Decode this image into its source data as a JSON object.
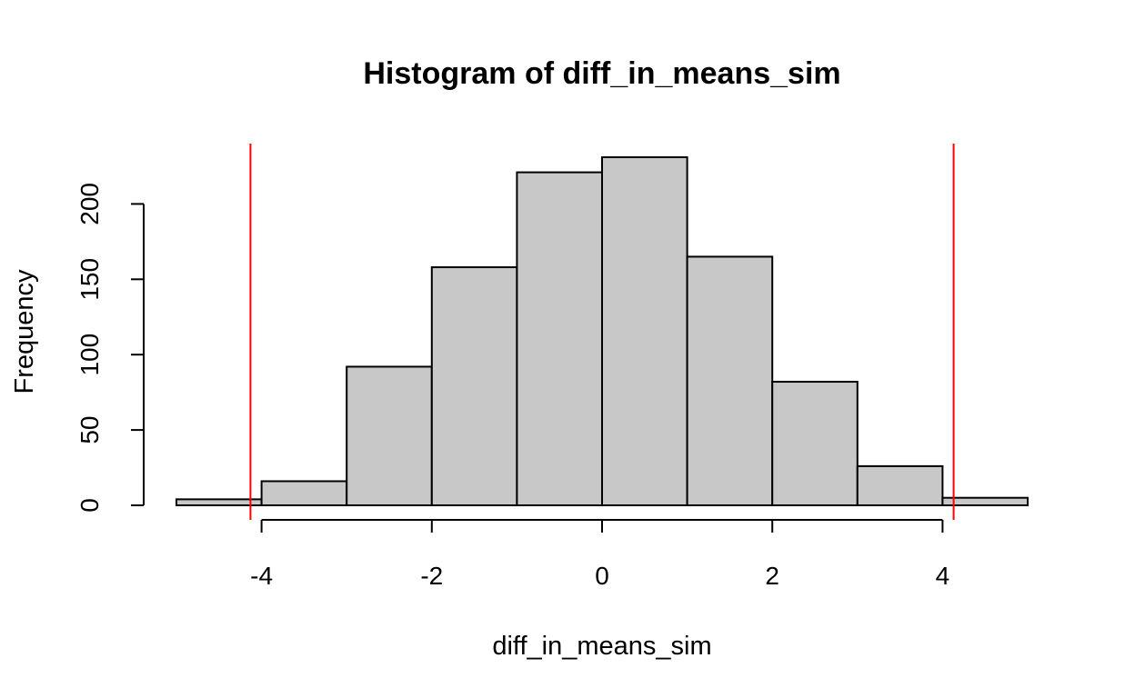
{
  "chart_data": {
    "type": "bar",
    "title": "Histogram of diff_in_means_sim",
    "xlabel": "diff_in_means_sim",
    "ylabel": "Frequency",
    "bins": [
      {
        "x0": -5,
        "x1": -4,
        "count": 4
      },
      {
        "x0": -4,
        "x1": -3,
        "count": 16
      },
      {
        "x0": -3,
        "x1": -2,
        "count": 92
      },
      {
        "x0": -2,
        "x1": -1,
        "count": 158
      },
      {
        "x0": -1,
        "x1": 0,
        "count": 221
      },
      {
        "x0": 0,
        "x1": 1,
        "count": 231
      },
      {
        "x0": 1,
        "x1": 2,
        "count": 165
      },
      {
        "x0": 2,
        "x1": 3,
        "count": 82
      },
      {
        "x0": 3,
        "x1": 4,
        "count": 26
      },
      {
        "x0": 4,
        "x1": 5,
        "count": 5
      }
    ],
    "xticks": [
      -4,
      -2,
      0,
      2,
      4
    ],
    "xtick_labels": [
      "-4",
      "-2",
      "0",
      "2",
      "4"
    ],
    "yticks": [
      0,
      50,
      100,
      150,
      200
    ],
    "ytick_labels": [
      "0",
      "50",
      "100",
      "150",
      "200"
    ],
    "xlim": [
      -5,
      5
    ],
    "ylim": [
      0,
      231
    ],
    "vlines": [
      -4.13,
      4.13
    ],
    "bar_color": "#c8c8c8",
    "bar_border_color": "#000000",
    "vline_color": "#ff0000",
    "grid": false,
    "legend": "none"
  }
}
